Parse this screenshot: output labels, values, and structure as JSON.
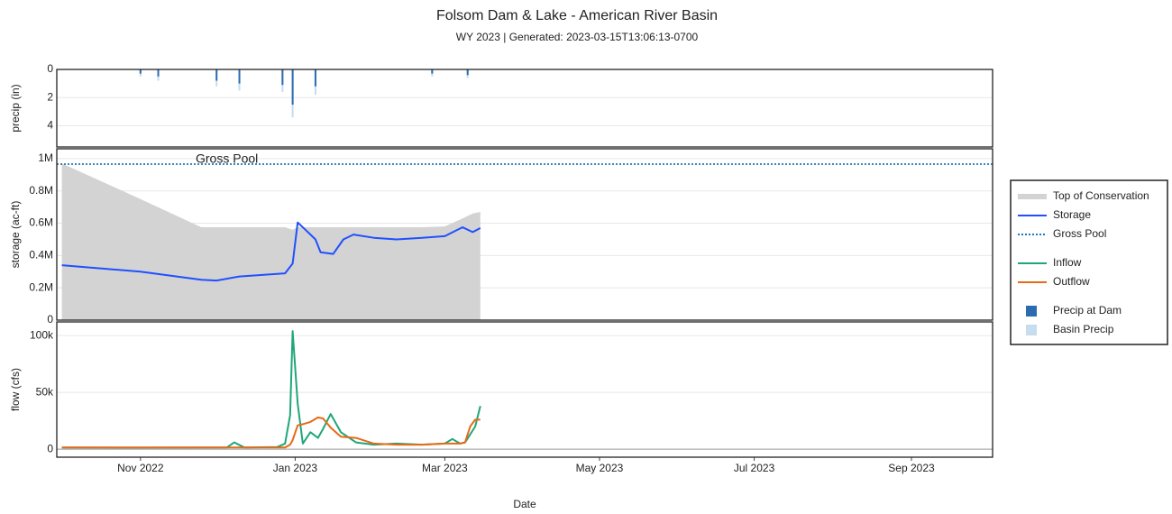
{
  "title": "Folsom Dam & Lake - American River Basin",
  "subtitle": "WY 2023 | Generated: 2023-03-15T13:06:13-0700",
  "chart_data": [
    {
      "type": "bar",
      "ylabel": "precip (in)",
      "reversed": true,
      "xlim": [
        "2022-09-29",
        "2023-10-03"
      ],
      "ylim": [
        0,
        5.5
      ],
      "yticks": [
        0,
        2,
        4
      ],
      "grid": true,
      "x": [
        "2022-11-01",
        "2022-11-08",
        "2022-12-01",
        "2022-12-10",
        "2022-12-27",
        "2022-12-31",
        "2023-01-09",
        "2023-02-24",
        "2023-03-10"
      ],
      "series": [
        {
          "name": "Precip at Dam",
          "color": "#2b6cb0",
          "values": [
            0.3,
            0.5,
            0.8,
            1.0,
            1.1,
            2.5,
            1.2,
            0.3,
            0.4
          ]
        },
        {
          "name": "Basin Precip",
          "color": "#c6dcef",
          "values": [
            0.5,
            0.8,
            1.2,
            1.5,
            1.6,
            3.4,
            1.8,
            0.5,
            0.6
          ]
        }
      ]
    },
    {
      "type": "line",
      "ylabel": "storage (ac-ft)",
      "xlim": [
        "2022-09-29",
        "2023-10-03"
      ],
      "ylim": [
        0,
        1061000
      ],
      "grid": true,
      "yticks": [
        0,
        {
          "value": 200000,
          "label": "0.2M"
        },
        {
          "value": 400000,
          "label": "0.4M"
        },
        {
          "value": 600000,
          "label": "0.6M"
        },
        {
          "value": 800000,
          "label": "0.8M"
        },
        {
          "value": 1000000,
          "label": "1M"
        }
      ],
      "x": [
        "2022-10-01",
        "2022-11-01",
        "2022-11-25",
        "2022-12-01",
        "2022-12-10",
        "2022-12-28",
        "2022-12-31",
        "2023-01-02",
        "2023-01-05",
        "2023-01-09",
        "2023-01-11",
        "2023-01-16",
        "2023-01-20",
        "2023-01-24",
        "2023-02-01",
        "2023-02-10",
        "2023-02-20",
        "2023-03-01",
        "2023-03-08",
        "2023-03-12",
        "2023-03-15"
      ],
      "series": [
        {
          "name": "Top of Conservation",
          "color": "#d3d3d3",
          "style": "area",
          "values": [
            970000,
            750000,
            575000,
            575000,
            575000,
            575000,
            560000,
            575000,
            575000,
            575000,
            575000,
            575000,
            575000,
            575000,
            575000,
            575000,
            575000,
            580000,
            630000,
            660000,
            670000
          ]
        },
        {
          "name": "Storage",
          "color": "#2050ff",
          "style": "line",
          "values": [
            340000,
            300000,
            250000,
            245000,
            270000,
            290000,
            350000,
            605000,
            560000,
            500000,
            420000,
            410000,
            500000,
            530000,
            510000,
            500000,
            510000,
            520000,
            575000,
            545000,
            570000
          ]
        }
      ],
      "hlines": [
        {
          "name": "Gross Pool",
          "color": "#1f77b4",
          "value": 966000
        }
      ],
      "annotations": [
        {
          "text": "Gross Pool"
        }
      ]
    },
    {
      "type": "line",
      "ylabel": "flow (cfs)",
      "xlabel": "Date",
      "xlim": [
        "2022-09-29",
        "2023-10-03"
      ],
      "ylim": [
        -7000,
        112000
      ],
      "grid": true,
      "yticks": [
        0,
        {
          "value": 50000,
          "label": "50k"
        },
        {
          "value": 100000,
          "label": "100k"
        }
      ],
      "xticks": [
        {
          "value": "2022-11-01",
          "label": "Nov 2022"
        },
        {
          "value": "2023-01-01",
          "label": "Jan 2023"
        },
        {
          "value": "2023-03-01",
          "label": "Mar 2023"
        },
        {
          "value": "2023-05-01",
          "label": "May 2023"
        },
        {
          "value": "2023-07-01",
          "label": "Jul 2023"
        },
        {
          "value": "2023-09-01",
          "label": "Sep 2023"
        }
      ],
      "x": [
        "2022-10-01",
        "2022-11-01",
        "2022-12-01",
        "2022-12-05",
        "2022-12-08",
        "2022-12-12",
        "2022-12-25",
        "2022-12-28",
        "2022-12-30",
        "2022-12-31",
        "2023-01-02",
        "2023-01-04",
        "2023-01-07",
        "2023-01-10",
        "2023-01-12",
        "2023-01-15",
        "2023-01-19",
        "2023-01-25",
        "2023-02-01",
        "2023-02-10",
        "2023-02-20",
        "2023-03-01",
        "2023-03-04",
        "2023-03-07",
        "2023-03-09",
        "2023-03-11",
        "2023-03-13",
        "2023-03-15"
      ],
      "series": [
        {
          "name": "Inflow",
          "color": "#1fa67a",
          "style": "line",
          "values": [
            1500,
            1400,
            1500,
            1500,
            6000,
            1500,
            2000,
            5000,
            30000,
            104000,
            40000,
            5000,
            15000,
            10000,
            18000,
            31000,
            15000,
            6000,
            4000,
            5000,
            4000,
            5000,
            9000,
            5000,
            6000,
            13000,
            20000,
            38000
          ]
        },
        {
          "name": "Outflow",
          "color": "#e66a17",
          "style": "line",
          "values": [
            1500,
            1500,
            1500,
            1500,
            1500,
            1500,
            1500,
            1500,
            4000,
            8000,
            21000,
            22000,
            24000,
            28000,
            27000,
            19000,
            11000,
            10000,
            5000,
            4000,
            4000,
            5000,
            5000,
            5000,
            6000,
            20000,
            26000,
            26000
          ]
        }
      ]
    }
  ]
}
